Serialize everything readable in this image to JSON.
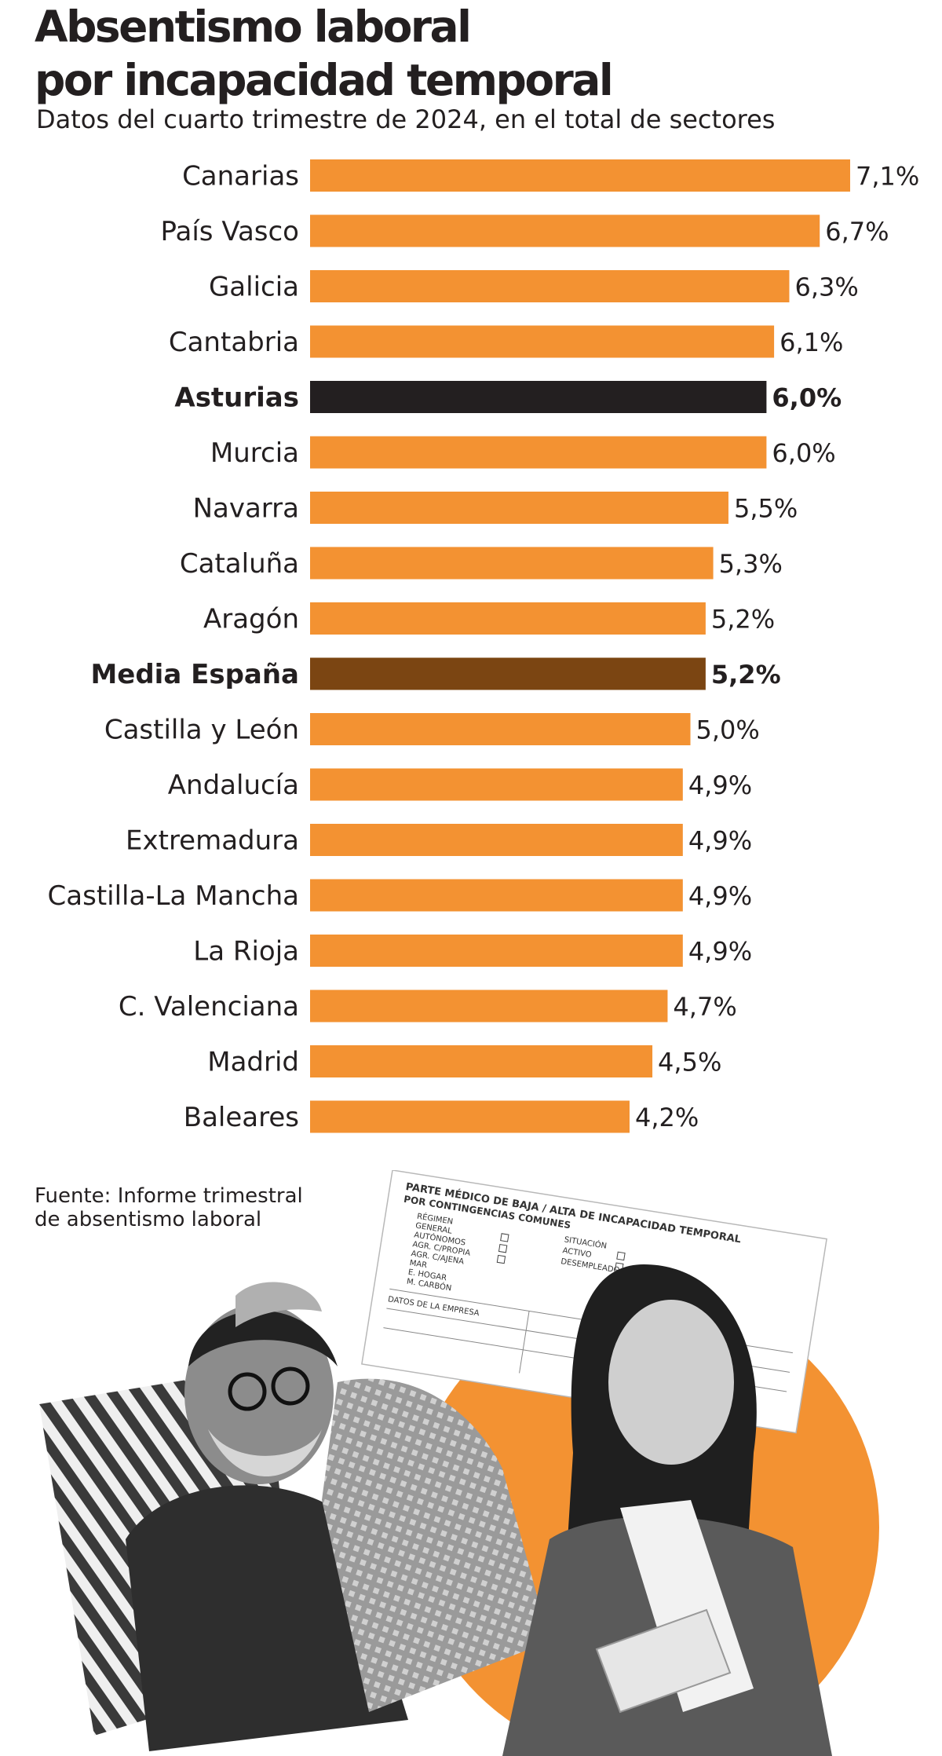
{
  "chart_data": {
    "type": "bar",
    "orientation": "horizontal",
    "title": [
      "Absentismo laboral",
      "por incapacidad temporal"
    ],
    "subtitle": "Datos del cuarto trimestre de 2024, en el total de sectores",
    "xlabel": "",
    "ylabel": "",
    "xlim": [
      0,
      7.1
    ],
    "unit": "%",
    "categories": [
      "Canarias",
      "País Vasco",
      "Galicia",
      "Cantabria",
      "Asturias",
      "Murcia",
      "Navarra",
      "Cataluña",
      "Aragón",
      "Media España",
      "Castilla y León",
      "Andalucía",
      "Extremadura",
      "Castilla-La Mancha",
      "La Rioja",
      "C. Valenciana",
      "Madrid",
      "Baleares"
    ],
    "values": [
      7.1,
      6.7,
      6.3,
      6.1,
      6.0,
      6.0,
      5.5,
      5.3,
      5.2,
      5.2,
      5.0,
      4.9,
      4.9,
      4.9,
      4.9,
      4.7,
      4.5,
      4.2
    ],
    "value_labels": [
      "7,1%",
      "6,7%",
      "6,3%",
      "6,1%",
      "6,0%",
      "6,0%",
      "5,5%",
      "5,3%",
      "5,2%",
      "5,2%",
      "5,0%",
      "4,9%",
      "4,9%",
      "4,9%",
      "4,9%",
      "4,7%",
      "4,5%",
      "4,2%"
    ],
    "highlight": {
      "Asturias": "#231f20",
      "Media España": "#7b4512"
    },
    "bar_color": "#f39232"
  },
  "source": [
    "Fuente: Informe trimestral",
    "de absentismo laboral"
  ],
  "illustration": {
    "form_lines": [
      "PARTE MÉDICO DE BAJA / ALTA DE INCAPACIDAD TEMPORAL",
      "POR CONTINGENCIAS COMUNES",
      "RÉGIMEN",
      "SITUACIÓN",
      "GENERAL",
      "ACTIVO",
      "DESEMPLEADO",
      "AUTÓNOMOS",
      "AGR. C/PROPIA",
      "AGR. C/AJENA",
      "MAR",
      "E. HOGAR",
      "M. CARBÓN",
      "DATOS DE LA EMPRESA"
    ],
    "colors": {
      "circle": "#f39232",
      "gray_dark": "#3a3a3a",
      "gray_mid": "#8a8a8a",
      "gray_light": "#d8d8d8"
    }
  }
}
